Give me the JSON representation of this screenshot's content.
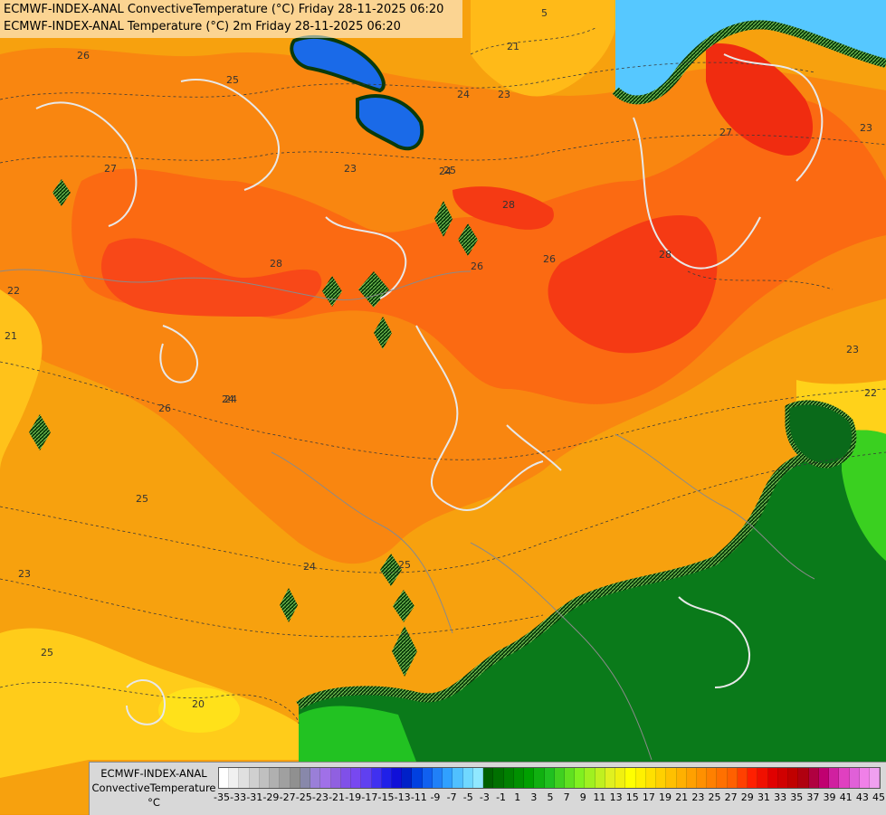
{
  "header": {
    "line1": "ECMWF-INDEX-ANAL ConvectiveTemperature (°C) Friday 28-11-2025 06:20",
    "line2": "ECMWF-INDEX-ANAL Temperature (°C) 2m Friday 28-11-2025 06:20"
  },
  "legend": {
    "title_line1": "ECMWF-INDEX-ANAL",
    "title_line2": "ConvectiveTemperature",
    "title_line3": "°C",
    "ticks": [
      "-35",
      "-33",
      "-31",
      "-29",
      "-27",
      "-25",
      "-23",
      "-21",
      "-19",
      "-17",
      "-15",
      "-13",
      "-11",
      "-9",
      "-7",
      "-5",
      "-3",
      "-1",
      "1",
      "3",
      "5",
      "7",
      "9",
      "11",
      "13",
      "15",
      "17",
      "19",
      "21",
      "23",
      "25",
      "27",
      "29",
      "31",
      "33",
      "35",
      "37",
      "39",
      "41",
      "43",
      "45"
    ],
    "colors": [
      "#ffffff",
      "#f0f0f0",
      "#e0e0e0",
      "#d0d0d0",
      "#c0c0c0",
      "#b0b0b0",
      "#a0a0a0",
      "#909090",
      "#8888aa",
      "#9a7fd8",
      "#a070e8",
      "#9060e0",
      "#8050e8",
      "#7848f0",
      "#6040f0",
      "#4030f0",
      "#2020e8",
      "#1010d8",
      "#0020c8",
      "#0040e0",
      "#1060f0",
      "#2080f8",
      "#30a0ff",
      "#50c0ff",
      "#70d8ff",
      "#90e8ff",
      "#006000",
      "#007000",
      "#008000",
      "#009000",
      "#00a000",
      "#10b010",
      "#20c020",
      "#40d020",
      "#60e020",
      "#80f020",
      "#a0f020",
      "#c0f020",
      "#e0f020",
      "#f0f010",
      "#ffff00",
      "#fff000",
      "#ffe000",
      "#ffd000",
      "#ffc000",
      "#ffb000",
      "#ffa000",
      "#ff9000",
      "#ff8000",
      "#ff7000",
      "#ff6000",
      "#ff4000",
      "#ff2000",
      "#f01000",
      "#e00000",
      "#d00000",
      "#c00000",
      "#b00010",
      "#b00040",
      "#c00070",
      "#d020a0",
      "#e040c0",
      "#e060d8",
      "#f080e8",
      "#f0a0f0"
    ]
  },
  "contour_labels": [
    "26",
    "25",
    "27",
    "28",
    "24",
    "23",
    "25",
    "24",
    "26",
    "28",
    "27",
    "26",
    "22",
    "21",
    "24",
    "26",
    "25",
    "23",
    "28",
    "22",
    "24",
    "25",
    "23",
    "25",
    "20",
    "23",
    "21",
    "5",
    "24",
    "23"
  ]
}
